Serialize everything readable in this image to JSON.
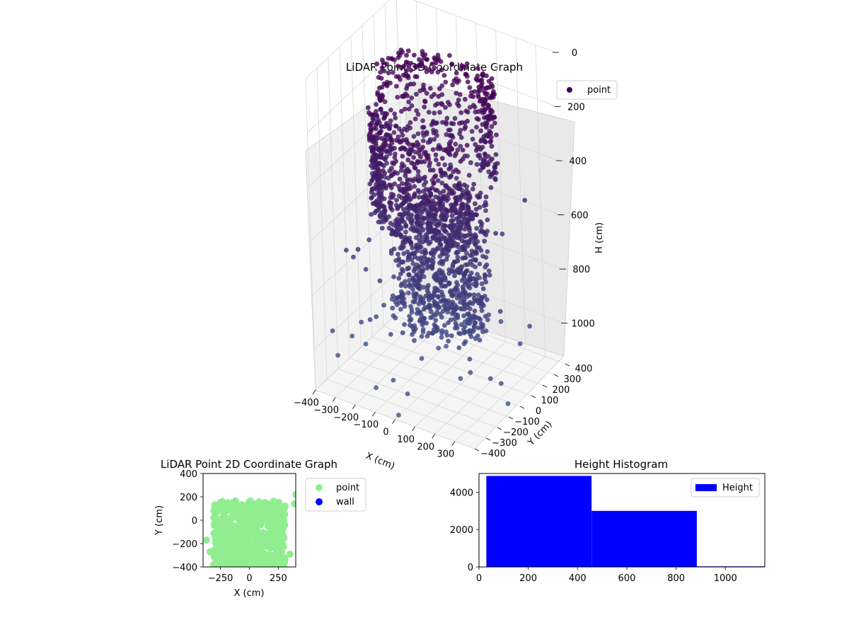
{
  "chart_data": [
    {
      "type": "scatter3d",
      "title": "LiDAR Point 3D Coordinate Graph",
      "xlabel": "X (cm)",
      "ylabel": "Y (cm)",
      "zlabel": "H (cm)",
      "xlim": [
        -400,
        400
      ],
      "ylim": [
        -400,
        400
      ],
      "zlim": [
        0,
        1150
      ],
      "z_inverted": true,
      "x_ticks": [
        "−400",
        "−300",
        "−200",
        "−100",
        "0",
        "100",
        "200",
        "300"
      ],
      "y_ticks": [
        "−400",
        "−300",
        "−200",
        "−100",
        "0",
        "100",
        "200",
        "300",
        "400"
      ],
      "z_ticks": [
        "0",
        "200",
        "400",
        "600",
        "800",
        "1000"
      ],
      "grid": true,
      "legend": {
        "position": "top-right",
        "entries": [
          "point"
        ]
      },
      "colormap": [
        "#440154",
        "#3b528b"
      ],
      "series": [
        {
          "name": "point",
          "color": "#440154"
        }
      ]
    },
    {
      "type": "scatter",
      "title": "LiDAR Point 2D Coordinate Graph",
      "xlabel": "X (cm)",
      "ylabel": "Y (cm)",
      "xlim": [
        -400,
        400
      ],
      "ylim": [
        -400,
        400
      ],
      "x_ticks": [
        "−250",
        "0",
        "250"
      ],
      "y_ticks": [
        "−400",
        "−200",
        "0",
        "200",
        "400"
      ],
      "legend": {
        "position": "right",
        "entries": [
          "point",
          "wall"
        ]
      },
      "series": [
        {
          "name": "point",
          "color": "#90ee90"
        },
        {
          "name": "wall",
          "color": "#0000ff"
        }
      ]
    },
    {
      "type": "bar",
      "title": "Height Histogram",
      "xlim": [
        0,
        1160
      ],
      "ylim": [
        0,
        5000
      ],
      "x_ticks": [
        "0",
        "200",
        "400",
        "600",
        "800",
        "1000"
      ],
      "y_ticks": [
        "0",
        "2000",
        "4000"
      ],
      "legend": {
        "position": "top-right",
        "entries": [
          "Height"
        ]
      },
      "bins": [
        {
          "start": 30,
          "end": 457,
          "value": 4870
        },
        {
          "start": 457,
          "end": 884,
          "value": 3000
        },
        {
          "start": 884,
          "end": 1160,
          "value": 30
        }
      ],
      "series": [
        {
          "name": "Height",
          "color": "#0000ff"
        }
      ]
    }
  ]
}
